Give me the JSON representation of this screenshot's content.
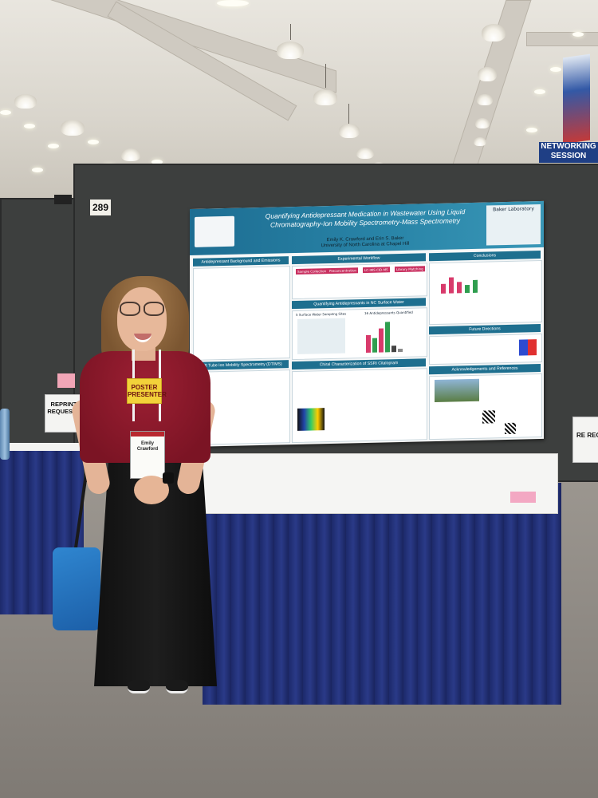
{
  "booth": {
    "number": "289",
    "reprint_left": "REPRINT REQUESTS",
    "reprint_right": "RE REQ"
  },
  "banner": {
    "networking": "NETWORKING SESSION"
  },
  "poster": {
    "title": "Quantifying Antidepressant Medication in Wastewater Using Liquid Chromatography-Ion Mobility Spectrometry-Mass Spectrometry",
    "authors": "Emily K. Crawford and Erin S. Baker",
    "affiliation": "University of North Carolina at Chapel Hill",
    "lab": "Baker Laboratory",
    "sections": {
      "background": "Antidepressant Background and Emissions",
      "workflow": "Experimental Workflow",
      "conclusions": "Conclusions",
      "quantifying": "Quantifying Antidepressants in NC Surface Water",
      "sampling": "5 Surface Water Sampling Sites",
      "quantified": "16 Antidepressants Quantified",
      "dtims": "Drift Tube Ion Mobility Spectrometry (DTIMS)",
      "chiral": "Chiral Characterization of SSRI Citalopram",
      "future": "Future Directions",
      "ack": "Acknowledgements and References"
    },
    "workflow_steps": [
      "Sample Collection",
      "Preconcentration",
      "LC-IMS-CID-MS",
      "Library Matching"
    ]
  },
  "person": {
    "badge_ribbon": "POSTER PRESENTER",
    "badge_name": "Emily Crawford"
  },
  "colors": {
    "poster_header": "#1e6f8f",
    "table_skirt": "#1d2a6b",
    "shirt": "#8f1b2d"
  }
}
